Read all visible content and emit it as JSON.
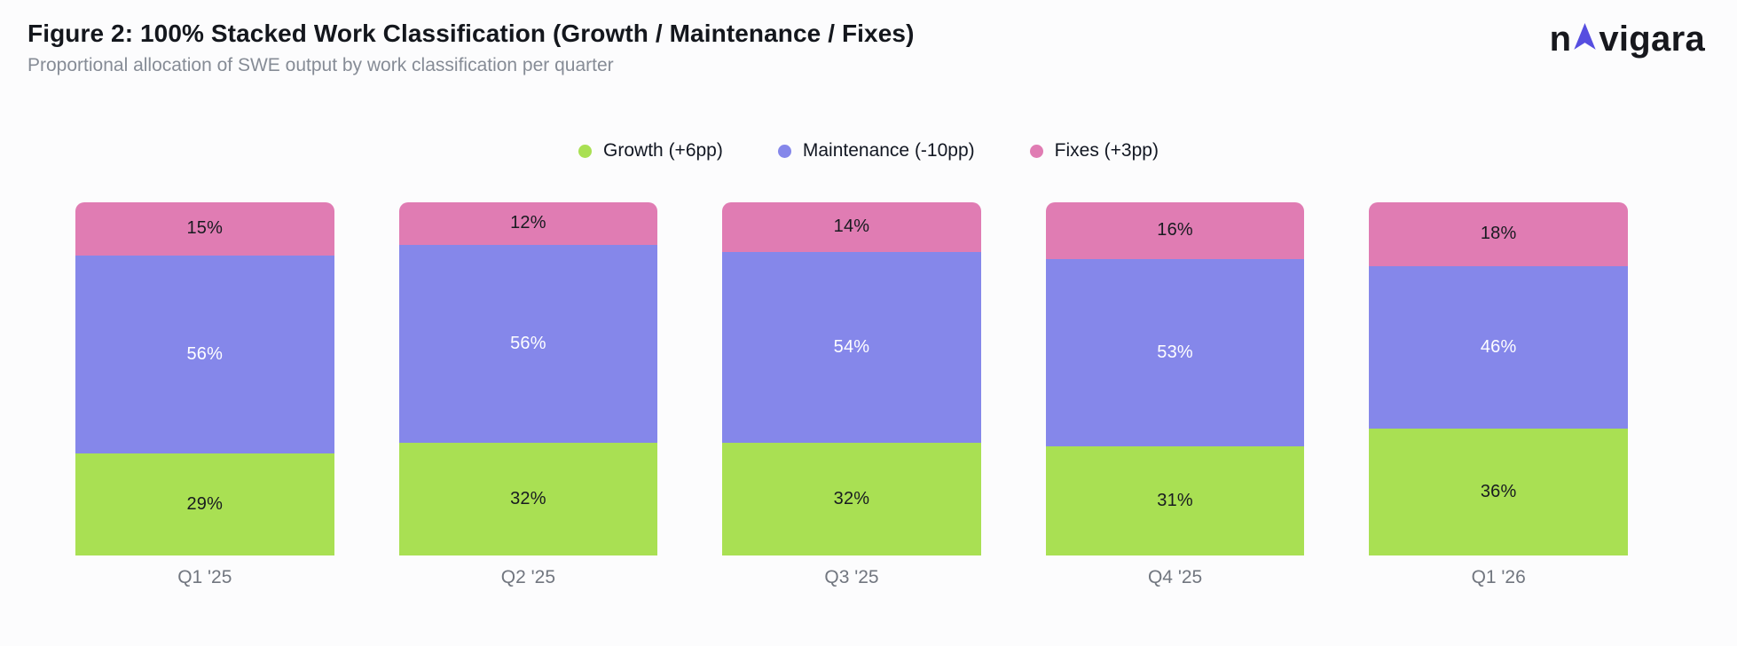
{
  "header": {
    "title": "Figure 2: 100% Stacked Work Classification (Growth / Maintenance / Fixes)",
    "subtitle": "Proportional allocation of SWE output by work classification per quarter"
  },
  "logo": {
    "name": "navigara",
    "prefix": "n",
    "suffix": "vigara",
    "arrow_color": "#564EE0",
    "text_color": "#17181D"
  },
  "legend": [
    {
      "label": "Growth (+6pp)",
      "color": "#A9E053"
    },
    {
      "label": "Maintenance (-10pp)",
      "color": "#8587EA"
    },
    {
      "label": "Fixes (+3pp)",
      "color": "#E07CB3"
    }
  ],
  "chart_data": {
    "type": "bar",
    "stacked": true,
    "normalized_100": true,
    "title": "Figure 2: 100% Stacked Work Classification (Growth / Maintenance / Fixes)",
    "subtitle": "Proportional allocation of SWE output by work classification per quarter",
    "categories": [
      "Q1 '25",
      "Q2 '25",
      "Q3 '25",
      "Q4 '25",
      "Q1 '26"
    ],
    "series": [
      {
        "name": "Growth",
        "color": "#A9E053",
        "label_color": "#181B20",
        "values": [
          29,
          32,
          32,
          31,
          36
        ]
      },
      {
        "name": "Maintenance",
        "color": "#8587EA",
        "label_color": "#FFFFFF",
        "values": [
          56,
          56,
          54,
          53,
          46
        ]
      },
      {
        "name": "Fixes",
        "color": "#E07CB3",
        "label_color": "#181B20",
        "values": [
          15,
          12,
          14,
          16,
          18
        ]
      }
    ],
    "value_suffix": "%",
    "ylim": [
      0,
      100
    ],
    "grid": false,
    "legend_position": "top-center",
    "stack_order_top_to_bottom": [
      "Fixes",
      "Maintenance",
      "Growth"
    ]
  }
}
